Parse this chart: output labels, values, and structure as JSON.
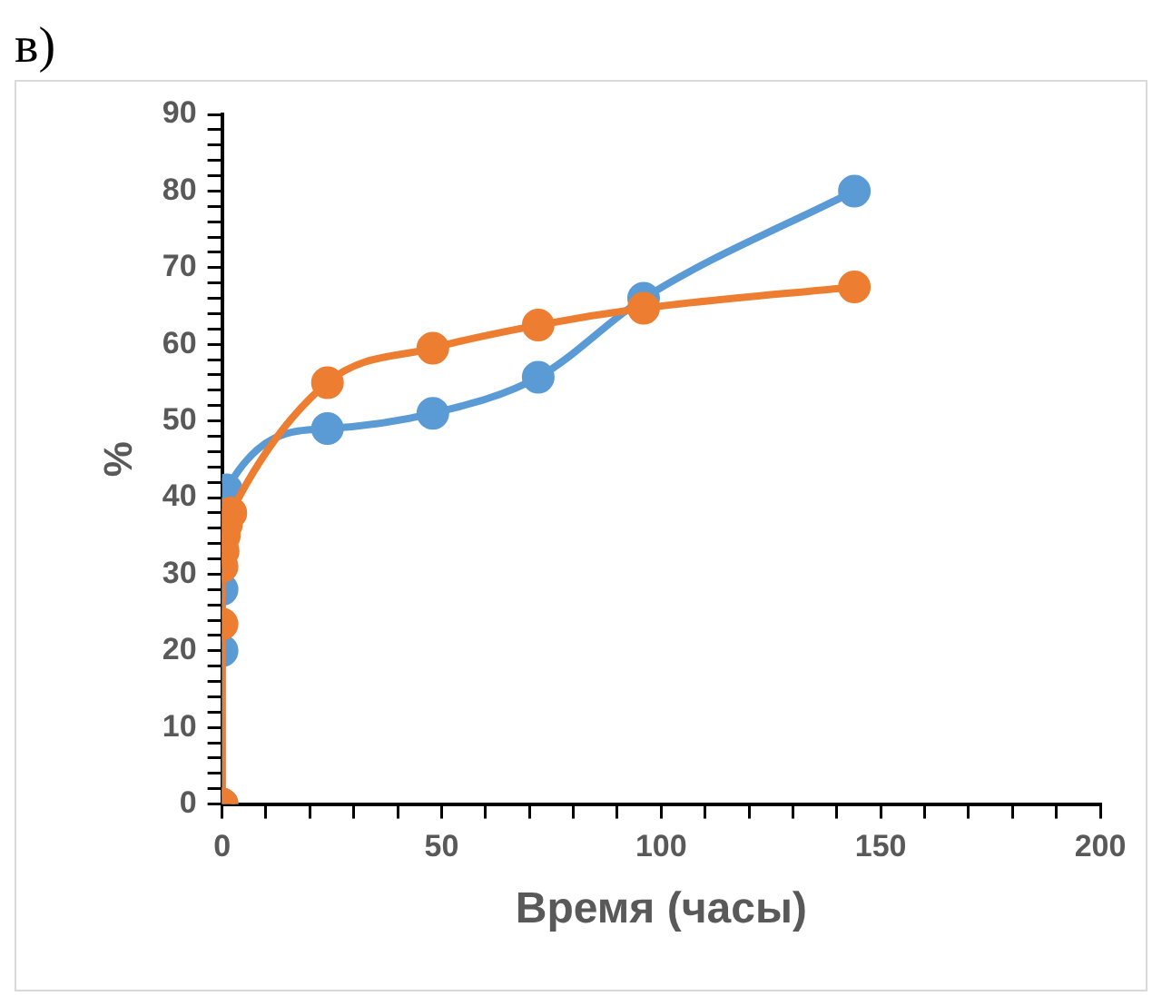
{
  "chart_data": {
    "type": "line",
    "title": "в)",
    "xlabel": "Время (часы)",
    "ylabel": "%",
    "marker": "circle",
    "line_style": "solid",
    "grid": false,
    "legend": false,
    "xlim": [
      0,
      200
    ],
    "ylim": [
      0,
      90
    ],
    "xticks": [
      0,
      {
        "value": 10,
        "label": null
      },
      {
        "value": 20,
        "label": null
      },
      {
        "value": 30,
        "label": null
      },
      {
        "value": 40,
        "label": null
      },
      50,
      {
        "value": 60,
        "label": null
      },
      {
        "value": 70,
        "label": null
      },
      {
        "value": 80,
        "label": null
      },
      {
        "value": 90,
        "label": null
      },
      100,
      {
        "value": 110,
        "label": null
      },
      {
        "value": 120,
        "label": null
      },
      {
        "value": 130,
        "label": null
      },
      {
        "value": 140,
        "label": null
      },
      150,
      {
        "value": 160,
        "label": null
      },
      {
        "value": 170,
        "label": null
      },
      {
        "value": 180,
        "label": null
      },
      {
        "value": 190,
        "label": null
      },
      200
    ],
    "yticks": [
      0,
      {
        "value": 2,
        "label": null
      },
      {
        "value": 4,
        "label": null
      },
      {
        "value": 6,
        "label": null
      },
      {
        "value": 8,
        "label": null
      },
      10,
      {
        "value": 12,
        "label": null
      },
      {
        "value": 14,
        "label": null
      },
      {
        "value": 16,
        "label": null
      },
      {
        "value": 18,
        "label": null
      },
      20,
      {
        "value": 22,
        "label": null
      },
      {
        "value": 24,
        "label": null
      },
      {
        "value": 26,
        "label": null
      },
      {
        "value": 28,
        "label": null
      },
      30,
      {
        "value": 32,
        "label": null
      },
      {
        "value": 34,
        "label": null
      },
      {
        "value": 36,
        "label": null
      },
      {
        "value": 38,
        "label": null
      },
      40,
      {
        "value": 42,
        "label": null
      },
      {
        "value": 44,
        "label": null
      },
      {
        "value": 46,
        "label": null
      },
      {
        "value": 48,
        "label": null
      },
      50,
      {
        "value": 52,
        "label": null
      },
      {
        "value": 54,
        "label": null
      },
      {
        "value": 56,
        "label": null
      },
      {
        "value": 58,
        "label": null
      },
      60,
      {
        "value": 62,
        "label": null
      },
      {
        "value": 64,
        "label": null
      },
      {
        "value": 66,
        "label": null
      },
      {
        "value": 68,
        "label": null
      },
      70,
      {
        "value": 72,
        "label": null
      },
      {
        "value": 74,
        "label": null
      },
      {
        "value": 76,
        "label": null
      },
      {
        "value": 78,
        "label": null
      },
      80,
      {
        "value": 82,
        "label": null
      },
      {
        "value": 84,
        "label": null
      },
      {
        "value": 86,
        "label": null
      },
      {
        "value": 88,
        "label": null
      },
      90
    ],
    "series": [
      {
        "color": "#5b9bd5",
        "x": [
          0,
          0,
          0,
          1,
          24,
          48,
          72,
          96,
          144
        ],
        "values": [
          0,
          20,
          28,
          41,
          49,
          51,
          55.7,
          66,
          80
        ]
      },
      {
        "color": "#ed7d31",
        "x": [
          0,
          0,
          0,
          0.25,
          0.5,
          1,
          2,
          24,
          48,
          72,
          96,
          144
        ],
        "values": [
          0,
          23.5,
          31,
          33,
          35,
          36.5,
          38,
          55,
          59.5,
          62.5,
          64.7,
          67.5
        ]
      }
    ]
  }
}
